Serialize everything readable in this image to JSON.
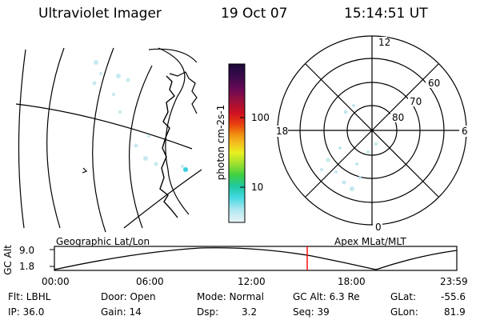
{
  "header": {
    "instrument": "Ultraviolet Imager",
    "date": "19 Oct 07",
    "time": "15:14:51 UT"
  },
  "colorbar": {
    "label": "photon cm-2s-1",
    "ticks": [
      "100",
      "10"
    ],
    "colors": [
      "#1c0a3a",
      "#3a0a4a",
      "#6a0a55",
      "#a0103a",
      "#d01020",
      "#e84010",
      "#f08a10",
      "#f5c020",
      "#e8f020",
      "#a0e030",
      "#40d040",
      "#20c8a0",
      "#40d8e0",
      "#b0e8f0",
      "#e8f4f8"
    ]
  },
  "geo_panel": {
    "label": "Geographic Lat/Lon"
  },
  "polar_panel": {
    "label": "Apex MLat/MLT",
    "mlt_labels": [
      "12",
      "18",
      "6",
      "0"
    ],
    "lat_labels": [
      "60",
      "70",
      "80"
    ]
  },
  "timeline": {
    "ylabel": "GC Alt",
    "ytick_labels": [
      "9.0",
      "1.8"
    ],
    "xtick_labels": [
      "00:00",
      "06:00",
      "12:00",
      "18:00",
      "23:59"
    ],
    "marker_color": "#ff0000"
  },
  "footer": {
    "col1": [
      "Flt: LBHL",
      "IP: 36.0"
    ],
    "col2": [
      "Door: Open",
      "Gain: 14"
    ],
    "col3a": [
      "Mode: Normal",
      "Dsp:"
    ],
    "col3b": [
      "",
      "3.2"
    ],
    "col4": [
      "GC Alt: 6.3 Re",
      "Seq: 39"
    ],
    "col5": [
      "GLat:",
      "GLon:"
    ],
    "col6": [
      "-55.6",
      "81.9"
    ]
  }
}
